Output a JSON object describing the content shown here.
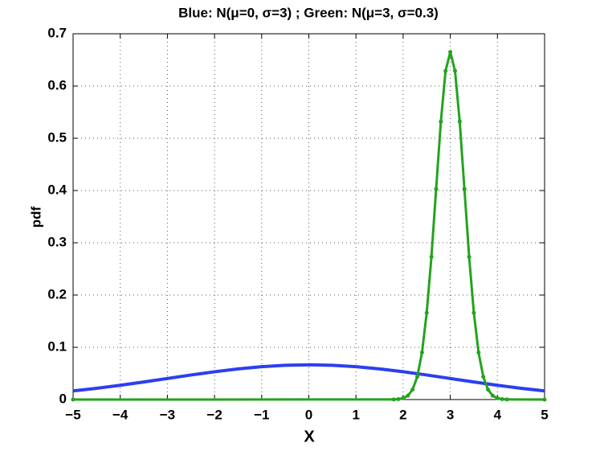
{
  "chart_data": {
    "type": "line",
    "title": "Blue: N(μ=0, σ=3) ;  Green: N(μ=3, σ=0.3)",
    "xlabel": "X",
    "ylabel": "pdf",
    "xlim": [
      -5,
      5
    ],
    "ylim": [
      0,
      0.7
    ],
    "xticks": [
      {
        "value": -5,
        "label": "−5"
      },
      {
        "value": -4,
        "label": "−4"
      },
      {
        "value": -3,
        "label": "−3"
      },
      {
        "value": -2,
        "label": "−2"
      },
      {
        "value": -1,
        "label": "−1"
      },
      0,
      1,
      2,
      3,
      4,
      5
    ],
    "yticks": [
      0,
      0.1,
      0.2,
      0.3,
      0.4,
      0.5,
      0.6,
      0.7
    ],
    "grid": true,
    "series": [
      {
        "color": "#2b3ff0",
        "marker": false,
        "x": [
          -5,
          -4.5,
          -4,
          -3.5,
          -3,
          -2.5,
          -2,
          -1.5,
          -1,
          -0.5,
          0,
          0.5,
          1,
          1.5,
          2,
          2.5,
          3,
          3.5,
          4,
          4.5,
          5
        ],
        "values": [
          0.0166,
          0.0216,
          0.0273,
          0.0337,
          0.0403,
          0.047,
          0.0532,
          0.0587,
          0.0629,
          0.0656,
          0.0665,
          0.0656,
          0.0629,
          0.0587,
          0.0532,
          0.047,
          0.0403,
          0.0337,
          0.0273,
          0.0216,
          0.0166
        ]
      },
      {
        "color": "#23a31e",
        "marker": true,
        "x": [
          -5,
          1.8,
          1.9,
          2,
          2.1,
          2.2,
          2.3,
          2.4,
          2.5,
          2.6,
          2.7,
          2.8,
          2.9,
          3,
          3.1,
          3.2,
          3.3,
          3.4,
          3.5,
          3.6,
          3.7,
          3.8,
          3.9,
          4,
          4.1,
          4.2,
          5
        ],
        "values": [
          0,
          0.0002,
          0.0008,
          0.0026,
          0.0074,
          0.019,
          0.0437,
          0.09,
          0.166,
          0.273,
          0.403,
          0.532,
          0.629,
          0.665,
          0.629,
          0.532,
          0.403,
          0.273,
          0.166,
          0.09,
          0.0437,
          0.019,
          0.0074,
          0.0026,
          0.0008,
          0.0002,
          0
        ]
      }
    ]
  }
}
